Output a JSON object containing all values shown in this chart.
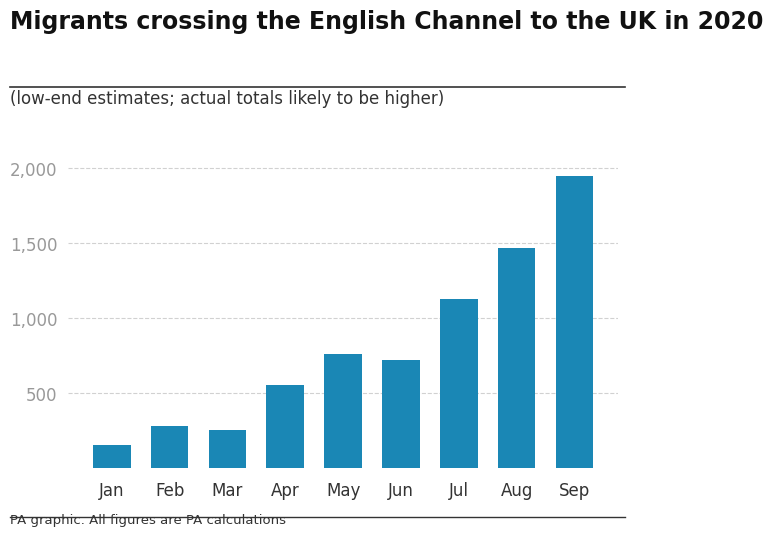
{
  "title": "Migrants crossing the English Channel to the UK in 2020",
  "subtitle": "(low-end estimates; actual totals likely to be higher)",
  "caption": "PA graphic. All figures are PA calculations",
  "categories": [
    "Jan",
    "Feb",
    "Mar",
    "Apr",
    "May",
    "Jun",
    "Jul",
    "Aug",
    "Sep"
  ],
  "values": [
    155,
    280,
    255,
    555,
    760,
    720,
    1130,
    1468,
    1950
  ],
  "bar_color": "#1a87b5",
  "background_color": "#ffffff",
  "yticks": [
    500,
    1000,
    1500,
    2000
  ],
  "ylim": [
    0,
    2100
  ],
  "grid_color": "#cccccc",
  "title_fontsize": 17,
  "subtitle_fontsize": 12,
  "caption_fontsize": 9.5,
  "tick_fontsize": 12,
  "ytick_color": "#999999",
  "xtick_color": "#333333",
  "title_color": "#111111",
  "subtitle_color": "#333333",
  "caption_color": "#333333"
}
